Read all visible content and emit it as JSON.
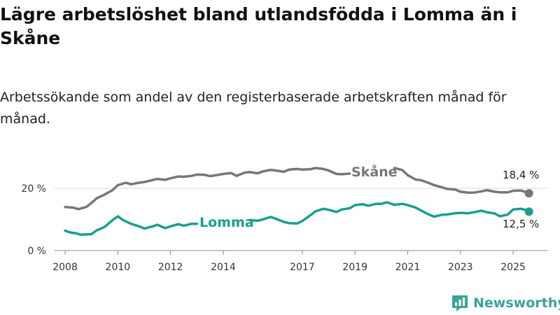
{
  "title": "Lägre arbetslöshet bland utlandsfödda i Lomma än i Skåne",
  "subtitle": "Arbetssökande som andel av den registerbaserade arbetskraften månad för månad.",
  "brand": {
    "name": "Newsworthy"
  },
  "colors": {
    "skane": "#777679",
    "lomma": "#1a9e8f",
    "grid": "#d9d9d9",
    "axis": "#888888"
  },
  "chart_data": {
    "type": "line",
    "xlim": [
      2007.6,
      2026.3
    ],
    "ylim": [
      0,
      31
    ],
    "x_ticks": [
      {
        "value": 2008,
        "label": "2008"
      },
      {
        "value": 2010,
        "label": "2010"
      },
      {
        "value": 2012,
        "label": "2012"
      },
      {
        "value": 2014,
        "label": "2014"
      },
      {
        "value": 2017,
        "label": "2017"
      },
      {
        "value": 2019,
        "label": "2019"
      },
      {
        "value": 2021,
        "label": "2021"
      },
      {
        "value": 2023,
        "label": "2023"
      },
      {
        "value": 2025,
        "label": "2025"
      }
    ],
    "y_ticks": [
      {
        "value": 0,
        "label": "0 %"
      },
      {
        "value": 20,
        "label": "20 %"
      }
    ],
    "series": [
      {
        "name": "Skåne",
        "color": "#777679",
        "end_label": "18,4 %",
        "segments": [
          [
            [
              2008.0,
              14.0
            ],
            [
              2008.3,
              13.8
            ],
            [
              2008.5,
              13.3
            ],
            [
              2008.8,
              14.0
            ],
            [
              2009.0,
              15.3
            ],
            [
              2009.2,
              16.8
            ],
            [
              2009.5,
              18.0
            ],
            [
              2009.8,
              19.4
            ],
            [
              2010.0,
              21.0
            ],
            [
              2010.3,
              21.8
            ],
            [
              2010.5,
              21.3
            ],
            [
              2010.8,
              21.8
            ],
            [
              2011.0,
              22.0
            ],
            [
              2011.3,
              22.6
            ],
            [
              2011.5,
              23.0
            ],
            [
              2011.8,
              22.7
            ],
            [
              2012.0,
              23.2
            ],
            [
              2012.3,
              23.8
            ],
            [
              2012.5,
              23.7
            ],
            [
              2012.8,
              24.0
            ],
            [
              2013.0,
              24.4
            ],
            [
              2013.3,
              24.3
            ],
            [
              2013.5,
              23.9
            ],
            [
              2013.8,
              24.3
            ],
            [
              2014.0,
              24.6
            ],
            [
              2014.3,
              24.9
            ],
            [
              2014.5,
              24.0
            ],
            [
              2014.8,
              25.0
            ],
            [
              2015.0,
              25.2
            ],
            [
              2015.3,
              24.8
            ],
            [
              2015.5,
              25.4
            ],
            [
              2015.8,
              25.9
            ],
            [
              2016.0,
              25.7
            ],
            [
              2016.3,
              25.3
            ],
            [
              2016.5,
              26.0
            ],
            [
              2016.8,
              26.2
            ],
            [
              2017.0,
              26.0
            ],
            [
              2017.3,
              26.1
            ],
            [
              2017.5,
              26.5
            ],
            [
              2017.8,
              26.2
            ],
            [
              2018.0,
              25.7
            ],
            [
              2018.3,
              24.6
            ],
            [
              2018.5,
              24.5
            ],
            [
              2018.8,
              24.7
            ]
          ],
          [
            [
              2020.5,
              26.5
            ],
            [
              2020.8,
              25.8
            ],
            [
              2021.0,
              24.2
            ],
            [
              2021.3,
              22.8
            ],
            [
              2021.5,
              22.6
            ],
            [
              2021.8,
              21.7
            ],
            [
              2022.0,
              21.0
            ],
            [
              2022.3,
              20.3
            ],
            [
              2022.5,
              19.8
            ],
            [
              2022.8,
              19.6
            ],
            [
              2023.0,
              18.9
            ],
            [
              2023.3,
              18.6
            ],
            [
              2023.5,
              18.6
            ],
            [
              2023.8,
              19.0
            ],
            [
              2024.0,
              19.4
            ],
            [
              2024.3,
              18.9
            ],
            [
              2024.5,
              18.7
            ],
            [
              2024.8,
              18.7
            ],
            [
              2025.0,
              19.2
            ],
            [
              2025.3,
              19.3
            ],
            [
              2025.5,
              18.7
            ],
            [
              2025.6,
              18.4
            ]
          ]
        ]
      },
      {
        "name": "Lomma",
        "color": "#1a9e8f",
        "end_label": "12,5 %",
        "segments": [
          [
            [
              2008.0,
              6.4
            ],
            [
              2008.2,
              5.8
            ],
            [
              2008.4,
              5.6
            ],
            [
              2008.6,
              5.1
            ],
            [
              2008.8,
              5.2
            ],
            [
              2009.0,
              5.3
            ],
            [
              2009.2,
              6.5
            ],
            [
              2009.5,
              7.6
            ],
            [
              2009.8,
              9.8
            ],
            [
              2010.0,
              11.0
            ],
            [
              2010.2,
              9.8
            ],
            [
              2010.5,
              8.6
            ],
            [
              2010.8,
              7.8
            ],
            [
              2011.0,
              7.1
            ],
            [
              2011.3,
              7.7
            ],
            [
              2011.5,
              8.3
            ],
            [
              2011.8,
              7.2
            ],
            [
              2012.0,
              7.8
            ],
            [
              2012.3,
              8.5
            ],
            [
              2012.5,
              8.0
            ],
            [
              2012.8,
              8.6
            ],
            [
              2013.0,
              8.6
            ]
          ],
          [
            [
              2015.0,
              9.8
            ],
            [
              2015.3,
              9.6
            ],
            [
              2015.5,
              10.0
            ],
            [
              2015.8,
              10.8
            ],
            [
              2016.0,
              10.2
            ],
            [
              2016.3,
              9.2
            ],
            [
              2016.5,
              8.8
            ],
            [
              2016.8,
              8.7
            ],
            [
              2017.0,
              9.5
            ],
            [
              2017.3,
              11.3
            ],
            [
              2017.5,
              12.6
            ],
            [
              2017.8,
              13.4
            ],
            [
              2018.0,
              13.1
            ],
            [
              2018.3,
              12.4
            ],
            [
              2018.5,
              13.2
            ],
            [
              2018.8,
              13.6
            ],
            [
              2019.0,
              14.6
            ],
            [
              2019.3,
              14.9
            ],
            [
              2019.5,
              14.4
            ],
            [
              2019.8,
              15.0
            ],
            [
              2020.0,
              15.0
            ],
            [
              2020.2,
              15.5
            ],
            [
              2020.5,
              14.7
            ],
            [
              2020.8,
              15.0
            ],
            [
              2021.0,
              14.6
            ],
            [
              2021.3,
              13.8
            ],
            [
              2021.5,
              12.9
            ],
            [
              2021.8,
              11.6
            ],
            [
              2022.0,
              10.9
            ],
            [
              2022.3,
              11.5
            ],
            [
              2022.5,
              11.6
            ],
            [
              2022.8,
              12.0
            ],
            [
              2023.0,
              12.1
            ],
            [
              2023.3,
              12.0
            ],
            [
              2023.5,
              12.3
            ],
            [
              2023.8,
              12.8
            ],
            [
              2024.0,
              12.3
            ],
            [
              2024.3,
              11.9
            ],
            [
              2024.5,
              11.0
            ],
            [
              2024.8,
              11.6
            ],
            [
              2025.0,
              13.2
            ],
            [
              2025.3,
              13.4
            ],
            [
              2025.5,
              13.0
            ],
            [
              2025.6,
              12.5
            ]
          ]
        ]
      }
    ]
  }
}
